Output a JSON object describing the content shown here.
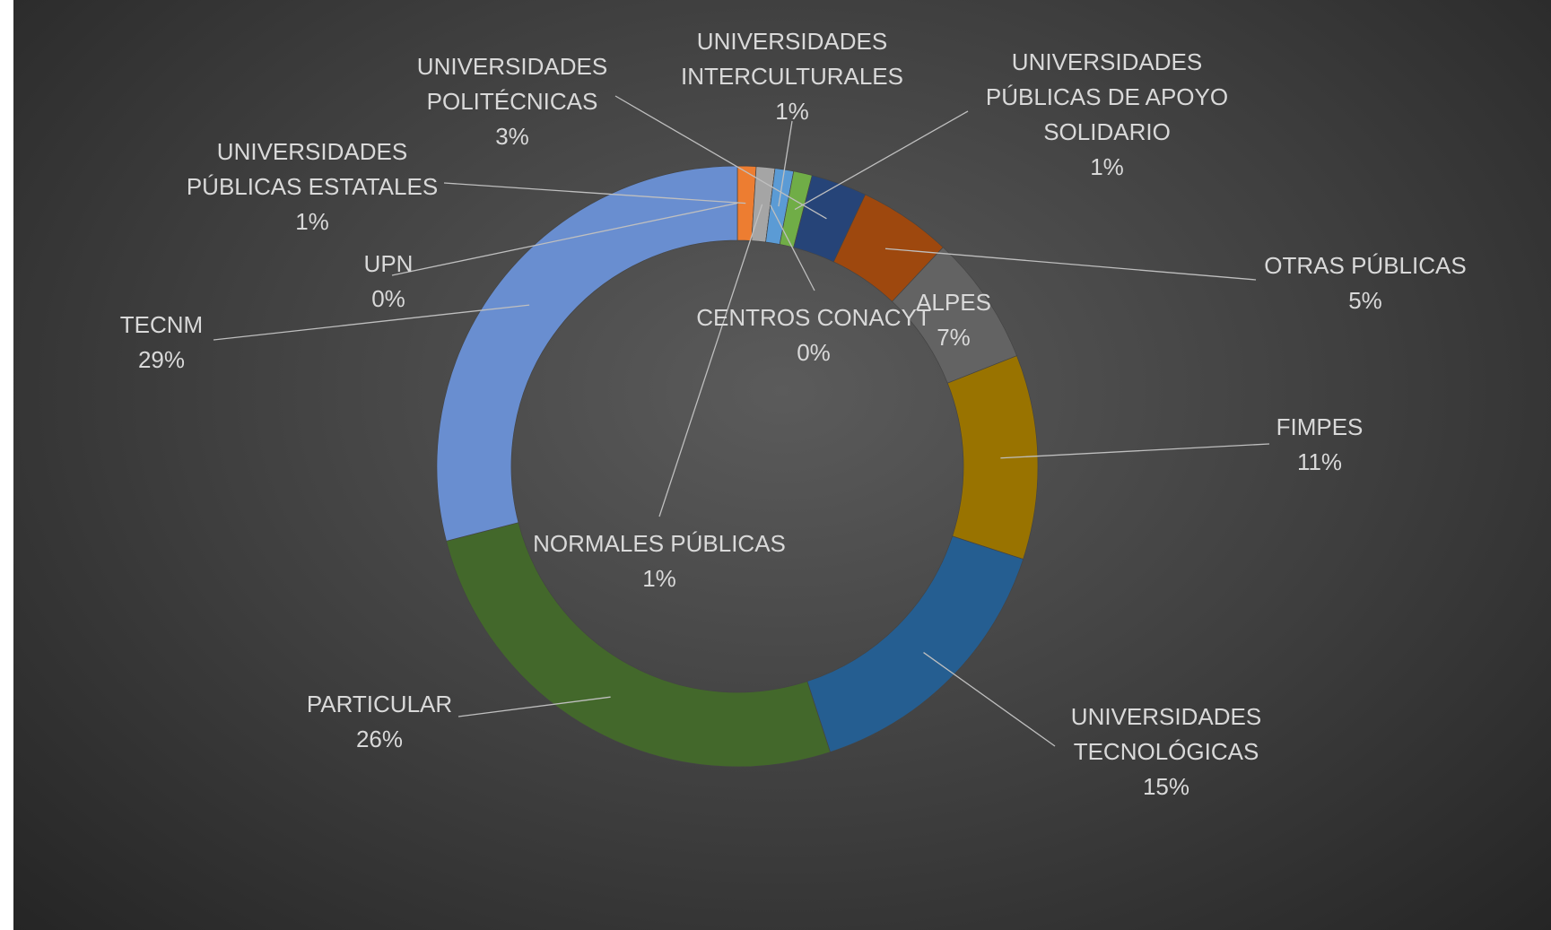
{
  "chart_data": {
    "type": "donut",
    "categories": [
      "UPN",
      "UNIVERSIDADES PÚBLICAS ESTATALES",
      "NORMALES PÚBLICAS",
      "CENTROS CONACYT",
      "UNIVERSIDADES INTERCULTURALES",
      "UNIVERSIDADES PÚBLICAS DE APOYO SOLIDARIO",
      "UNIVERSIDADES POLITÉCNICAS",
      "OTRAS PÚBLICAS",
      "ALPES",
      "FIMPES",
      "UNIVERSIDADES TECNOLÓGICAS",
      "PARTICULAR",
      "TECNM"
    ],
    "values": [
      0,
      1,
      1,
      0,
      1,
      1,
      3,
      5,
      7,
      11,
      15,
      26,
      29
    ],
    "value_labels": [
      "0%",
      "1%",
      "1%",
      "0%",
      "1%",
      "1%",
      "3%",
      "5%",
      "7%",
      "11%",
      "15%",
      "26%",
      "29%"
    ],
    "colors": [
      "#4472c4",
      "#ed7d31",
      "#a5a5a5",
      "#ffc000",
      "#5b9bd5",
      "#70ad47",
      "#264478",
      "#9e480e",
      "#636363",
      "#997300",
      "#255e91",
      "#43682b",
      "#698ed0"
    ]
  }
}
